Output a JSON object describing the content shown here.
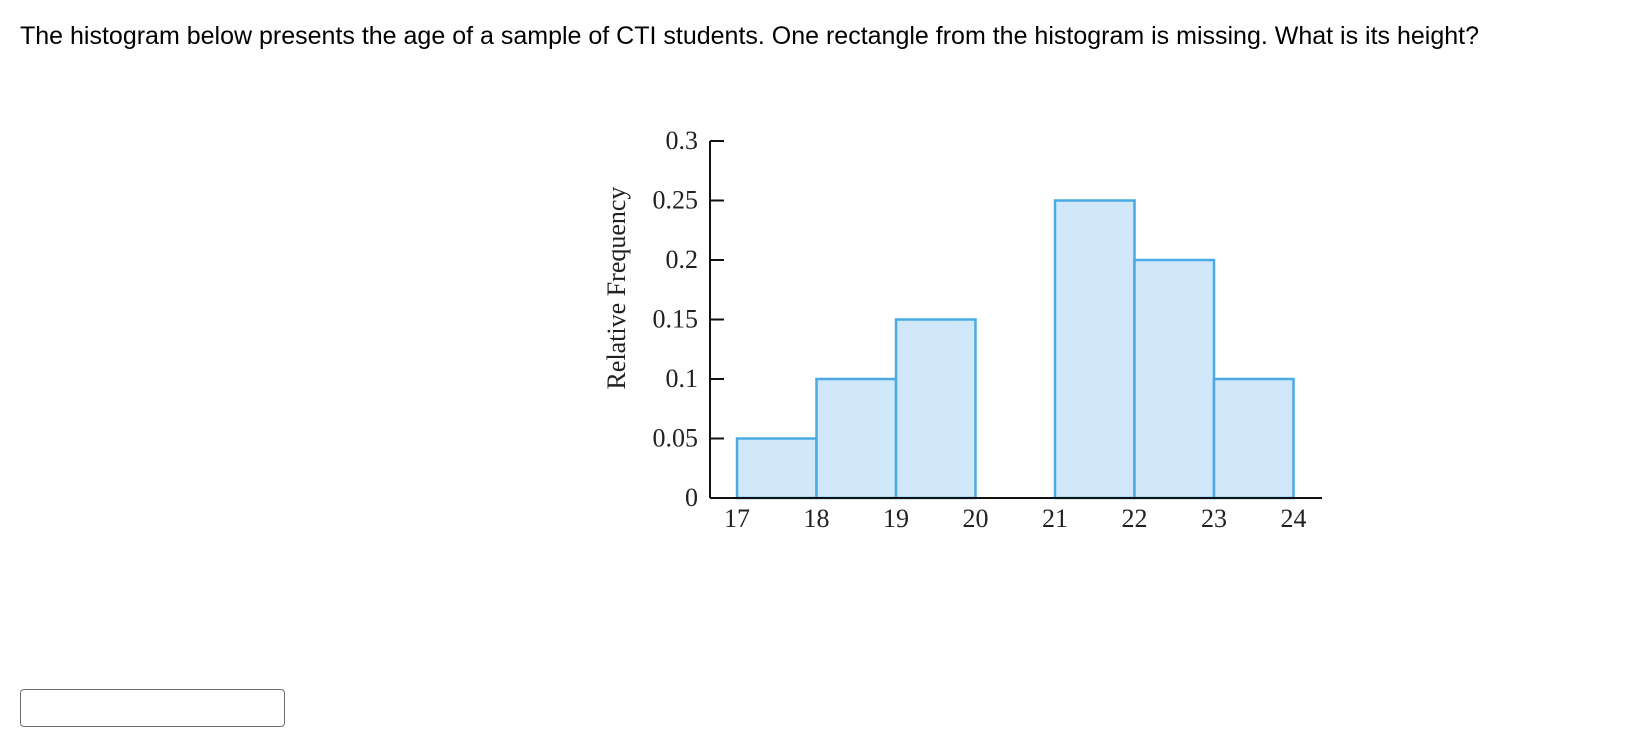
{
  "question": {
    "text": "The histogram below presents the age of a sample of CTI students. One rectangle from the histogram is missing. What is its height?"
  },
  "answer": {
    "value": "",
    "placeholder": ""
  },
  "colors": {
    "bar_fill": "#d0e8fa",
    "bar_stroke": "#4aaae3",
    "axis": "#111111"
  },
  "chart_data": {
    "type": "bar",
    "title": "",
    "xlabel": "",
    "ylabel": "Relative Frequency",
    "categories": [
      "17-18",
      "18-19",
      "19-20",
      "20-21",
      "21-22",
      "22-23",
      "23-24"
    ],
    "bins": [
      [
        17,
        18
      ],
      [
        18,
        19
      ],
      [
        19,
        20
      ],
      [
        20,
        21
      ],
      [
        21,
        22
      ],
      [
        22,
        23
      ],
      [
        23,
        24
      ]
    ],
    "values": [
      0.05,
      0.1,
      0.15,
      null,
      0.25,
      0.2,
      0.1
    ],
    "x_ticks": [
      "17",
      "18",
      "19",
      "20",
      "21",
      "22",
      "23",
      "24"
    ],
    "y_ticks": [
      "0",
      "0.05",
      "0.1",
      "0.15",
      "0.2",
      "0.25",
      "0.3"
    ],
    "xlim": [
      17,
      24
    ],
    "ylim": [
      0,
      0.3
    ],
    "grid": false,
    "legend": "none"
  }
}
